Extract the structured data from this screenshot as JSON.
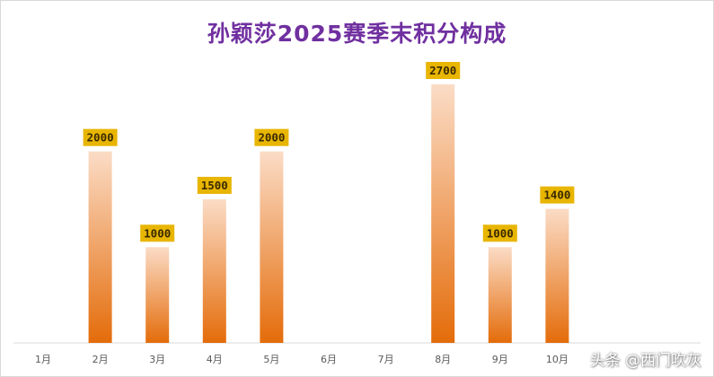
{
  "chart_data": {
    "type": "bar",
    "title": "孙颖莎2025赛季末积分构成",
    "categories": [
      "1月",
      "2月",
      "3月",
      "4月",
      "5月",
      "6月",
      "7月",
      "8月",
      "9月",
      "10月"
    ],
    "values": [
      0,
      2000,
      1000,
      1500,
      2000,
      0,
      0,
      2700,
      1000,
      1400
    ],
    "data_labels": [
      "",
      "2000",
      "1000",
      "1500",
      "2000",
      "",
      "",
      "2700",
      "1000",
      "1400"
    ],
    "xlabel": "",
    "ylabel": "",
    "ylim": [
      0,
      3000
    ],
    "grid": false,
    "legend": "none"
  },
  "colors": {
    "title": "#7030a0",
    "bar_top": "#fbdcc6",
    "bar_bottom": "#e46c0a",
    "label_bg": "#e8b500",
    "axis": "#d9d9d9",
    "tick_text": "#595959"
  },
  "watermark": "头条 @西门吹灰"
}
